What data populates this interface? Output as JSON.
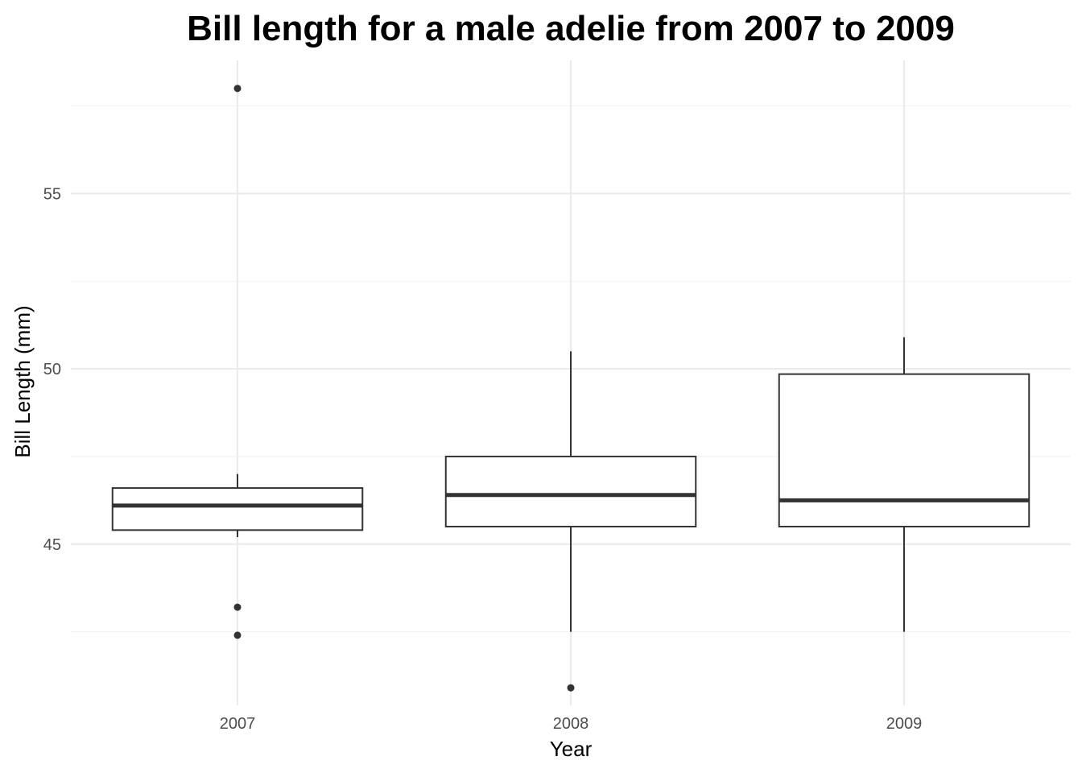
{
  "chart_data": {
    "type": "box",
    "title": "Bill length for a male adelie from 2007 to 2009",
    "xlabel": "Year",
    "ylabel": "Bill Length (mm)",
    "categories": [
      "2007",
      "2008",
      "2009"
    ],
    "ylim": [
      40.4,
      58.8
    ],
    "yticks": [
      45,
      50,
      55
    ],
    "grid": true,
    "boxes": [
      {
        "category": "2007",
        "whisker_low": 45.2,
        "q1": 45.4,
        "median": 46.1,
        "q3": 46.6,
        "whisker_high": 47.0,
        "outliers": [
          58.0,
          43.2,
          42.4
        ]
      },
      {
        "category": "2008",
        "whisker_low": 42.5,
        "q1": 45.5,
        "median": 46.4,
        "q3": 47.5,
        "whisker_high": 50.5,
        "outliers": [
          40.9
        ]
      },
      {
        "category": "2009",
        "whisker_low": 42.5,
        "q1": 45.5,
        "median": 46.25,
        "q3": 49.85,
        "whisker_high": 50.9,
        "outliers": []
      }
    ],
    "colors": {
      "box_stroke": "#333333",
      "box_fill": "#ffffff",
      "grid_major": "#ebebeb",
      "grid_minor": "#f2f2f2",
      "tick_text": "#4d4d4d"
    }
  }
}
